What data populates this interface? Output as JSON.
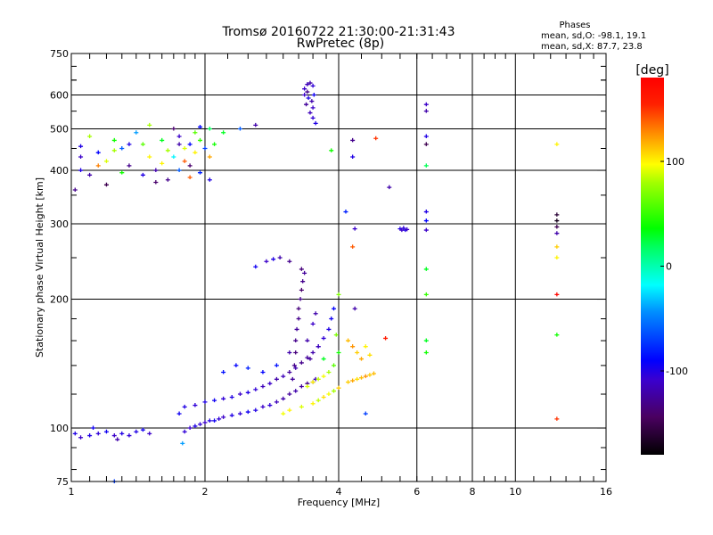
{
  "chart_data": {
    "type": "scatter",
    "title": "Tromsø 20160722 21:30:00-21:31:43",
    "subtitle": "RwPretec (8p)",
    "xlabel": "Frequency [MHz]",
    "ylabel": "Stationary phase Virtual Height [km]",
    "xscale": "log",
    "yscale": "log",
    "xlim": [
      1,
      16
    ],
    "ylim": [
      75,
      750
    ],
    "xticks": [
      1,
      2,
      4,
      6,
      8,
      10,
      16
    ],
    "xtick_labels": [
      "1",
      "2",
      "4",
      "6",
      "8",
      "10",
      "16"
    ],
    "yticks": [
      75,
      100,
      200,
      300,
      400,
      500,
      600,
      750
    ],
    "ytick_labels": [
      "75",
      "100",
      "200",
      "300",
      "400",
      "500",
      "600",
      "750"
    ],
    "x_gridlines": [
      2,
      4,
      6,
      8,
      10
    ],
    "y_gridlines": [
      100,
      200,
      300,
      400,
      500,
      600
    ],
    "grid": true,
    "info": {
      "heading": "Phases",
      "line_o": "mean, sd,O: -98.1, 19.1",
      "line_x": "mean, sd,X:  87.7, 23.8"
    },
    "colorbar": {
      "label": "[deg]",
      "range": [
        -180,
        180
      ],
      "ticks": [
        100,
        0,
        -100
      ],
      "tick_labels": [
        "100",
        "0",
        "-100"
      ],
      "placement": "right"
    },
    "point_format": [
      "frequency_MHz",
      "height_km",
      "phase_deg"
    ],
    "points": [
      [
        1.8,
        98,
        -105
      ],
      [
        1.85,
        100,
        -110
      ],
      [
        1.9,
        101,
        -100
      ],
      [
        1.95,
        102,
        -105
      ],
      [
        2.0,
        103,
        -110
      ],
      [
        2.05,
        104,
        -100
      ],
      [
        2.1,
        104,
        -95
      ],
      [
        2.15,
        105,
        -105
      ],
      [
        2.2,
        106,
        -110
      ],
      [
        2.3,
        107,
        -100
      ],
      [
        2.4,
        108,
        -105
      ],
      [
        2.5,
        109,
        -95
      ],
      [
        2.6,
        110,
        -100
      ],
      [
        2.7,
        112,
        -110
      ],
      [
        2.8,
        113,
        -105
      ],
      [
        2.9,
        115,
        -115
      ],
      [
        3.0,
        117,
        -120
      ],
      [
        3.1,
        120,
        -125
      ],
      [
        3.2,
        122,
        -120
      ],
      [
        3.3,
        125,
        -125
      ],
      [
        3.4,
        127,
        -130
      ],
      [
        3.5,
        128,
        -120
      ],
      [
        3.55,
        130,
        -115
      ],
      [
        3.15,
        130,
        -125
      ],
      [
        3.18,
        140,
        -130
      ],
      [
        3.2,
        150,
        -135
      ],
      [
        3.2,
        160,
        -130
      ],
      [
        3.22,
        170,
        -125
      ],
      [
        3.25,
        180,
        -130
      ],
      [
        3.25,
        190,
        -135
      ],
      [
        3.28,
        200,
        -130
      ],
      [
        3.3,
        210,
        -140
      ],
      [
        3.32,
        220,
        -130
      ],
      [
        3.35,
        230,
        -125
      ],
      [
        3.3,
        235,
        -135
      ],
      [
        3.1,
        150,
        -120
      ],
      [
        3.4,
        160,
        -120
      ],
      [
        3.45,
        145,
        -125
      ],
      [
        3.5,
        175,
        -110
      ],
      [
        3.6,
        155,
        -100
      ],
      [
        3.55,
        185,
        -120
      ],
      [
        1.75,
        108,
        -95
      ],
      [
        1.8,
        112,
        -100
      ],
      [
        1.9,
        113,
        -105
      ],
      [
        2.0,
        115,
        -100
      ],
      [
        2.1,
        116,
        -95
      ],
      [
        2.2,
        117,
        -105
      ],
      [
        2.3,
        118,
        -100
      ],
      [
        2.4,
        120,
        -110
      ],
      [
        2.5,
        121,
        -100
      ],
      [
        2.6,
        123,
        -105
      ],
      [
        2.7,
        125,
        -115
      ],
      [
        2.8,
        127,
        -110
      ],
      [
        2.9,
        130,
        -120
      ],
      [
        3.0,
        132,
        -115
      ],
      [
        3.1,
        135,
        -125
      ],
      [
        3.2,
        138,
        -120
      ],
      [
        3.3,
        142,
        -130
      ],
      [
        3.4,
        146,
        -125
      ],
      [
        3.5,
        150,
        -120
      ],
      [
        3.6,
        155,
        -115
      ],
      [
        3.7,
        162,
        -105
      ],
      [
        3.8,
        170,
        -100
      ],
      [
        3.85,
        180,
        -95
      ],
      [
        3.9,
        190,
        -90
      ],
      [
        2.2,
        135,
        -85
      ],
      [
        2.35,
        140,
        -90
      ],
      [
        2.5,
        138,
        -80
      ],
      [
        2.7,
        135,
        -90
      ],
      [
        2.9,
        140,
        -85
      ],
      [
        2.6,
        238,
        -95
      ],
      [
        2.75,
        245,
        -110
      ],
      [
        2.85,
        248,
        -100
      ],
      [
        2.95,
        250,
        -120
      ],
      [
        3.1,
        245,
        -130
      ],
      [
        3.0,
        108,
        95
      ],
      [
        3.1,
        110,
        100
      ],
      [
        3.3,
        112,
        90
      ],
      [
        3.5,
        114,
        100
      ],
      [
        3.6,
        116,
        85
      ],
      [
        3.7,
        118,
        105
      ],
      [
        3.8,
        120,
        95
      ],
      [
        3.9,
        122,
        80
      ],
      [
        4.0,
        124,
        110
      ],
      [
        3.4,
        125,
        90
      ],
      [
        3.5,
        128,
        100
      ],
      [
        3.6,
        130,
        85
      ],
      [
        3.7,
        132,
        95
      ],
      [
        3.8,
        135,
        80
      ],
      [
        3.9,
        140,
        60
      ],
      [
        4.0,
        150,
        40
      ],
      [
        3.95,
        165,
        70
      ],
      [
        3.7,
        145,
        30
      ],
      [
        4.0,
        205,
        70
      ],
      [
        4.2,
        128,
        110
      ],
      [
        4.3,
        129,
        120
      ],
      [
        4.4,
        130,
        105
      ],
      [
        4.5,
        131,
        115
      ],
      [
        4.6,
        132,
        125
      ],
      [
        4.7,
        133,
        110
      ],
      [
        4.8,
        134,
        115
      ],
      [
        4.4,
        150,
        110
      ],
      [
        4.5,
        145,
        120
      ],
      [
        4.6,
        155,
        100
      ],
      [
        4.7,
        148,
        105
      ],
      [
        4.3,
        155,
        125
      ],
      [
        4.2,
        160,
        115
      ],
      [
        5.1,
        162,
        160
      ],
      [
        4.6,
        108,
        -70
      ],
      [
        4.35,
        190,
        -120
      ],
      [
        3.35,
        620,
        -110
      ],
      [
        3.4,
        635,
        -115
      ],
      [
        3.45,
        640,
        -120
      ],
      [
        3.5,
        630,
        -105
      ],
      [
        3.35,
        600,
        -110
      ],
      [
        3.42,
        590,
        -100
      ],
      [
        3.48,
        580,
        -120
      ],
      [
        3.5,
        560,
        -110
      ],
      [
        3.38,
        570,
        -125
      ],
      [
        3.45,
        545,
        -115
      ],
      [
        3.5,
        530,
        -105
      ],
      [
        3.55,
        515,
        -100
      ],
      [
        3.4,
        610,
        -130
      ],
      [
        3.52,
        600,
        -95
      ],
      [
        1.05,
        455,
        -100
      ],
      [
        1.05,
        430,
        -110
      ],
      [
        1.1,
        480,
        80
      ],
      [
        1.15,
        440,
        -90
      ],
      [
        1.2,
        420,
        90
      ],
      [
        1.25,
        470,
        40
      ],
      [
        1.3,
        450,
        -60
      ],
      [
        1.35,
        410,
        -130
      ],
      [
        1.4,
        490,
        -40
      ],
      [
        1.45,
        460,
        60
      ],
      [
        1.5,
        430,
        100
      ],
      [
        1.55,
        400,
        -120
      ],
      [
        1.6,
        470,
        30
      ],
      [
        1.65,
        445,
        80
      ],
      [
        1.7,
        500,
        -140
      ],
      [
        1.75,
        480,
        -110
      ],
      [
        1.8,
        420,
        140
      ],
      [
        1.85,
        460,
        -90
      ],
      [
        1.9,
        440,
        100
      ],
      [
        1.95,
        470,
        50
      ],
      [
        2.0,
        450,
        -70
      ],
      [
        2.05,
        430,
        120
      ],
      [
        1.75,
        400,
        -60
      ],
      [
        1.65,
        380,
        -130
      ],
      [
        1.55,
        375,
        -140
      ],
      [
        1.45,
        390,
        -100
      ],
      [
        1.3,
        395,
        40
      ],
      [
        1.2,
        370,
        -150
      ],
      [
        1.1,
        390,
        -120
      ],
      [
        1.85,
        385,
        140
      ],
      [
        1.95,
        395,
        -80
      ],
      [
        2.05,
        380,
        -100
      ],
      [
        2.2,
        490,
        30
      ],
      [
        2.4,
        500,
        -60
      ],
      [
        2.6,
        510,
        -120
      ],
      [
        1.5,
        510,
        80
      ],
      [
        1.95,
        505,
        -90
      ],
      [
        2.05,
        500,
        20
      ],
      [
        1.8,
        450,
        90
      ],
      [
        1.9,
        490,
        60
      ],
      [
        1.7,
        430,
        -20
      ],
      [
        1.6,
        415,
        100
      ],
      [
        1.35,
        460,
        -100
      ],
      [
        1.25,
        445,
        80
      ],
      [
        1.15,
        410,
        130
      ],
      [
        2.1,
        460,
        40
      ],
      [
        1.85,
        410,
        -140
      ],
      [
        1.75,
        460,
        -120
      ],
      [
        1.05,
        400,
        -100
      ],
      [
        1.02,
        360,
        -130
      ],
      [
        1.02,
        97,
        -100
      ],
      [
        1.05,
        95,
        -110
      ],
      [
        1.1,
        96,
        -100
      ],
      [
        1.15,
        97,
        -105
      ],
      [
        1.2,
        98,
        -95
      ],
      [
        1.25,
        96,
        -110
      ],
      [
        1.3,
        97,
        -100
      ],
      [
        1.35,
        96,
        -105
      ],
      [
        1.4,
        98,
        -100
      ],
      [
        1.45,
        99,
        -95
      ],
      [
        1.5,
        97,
        -110
      ],
      [
        1.12,
        100,
        -95
      ],
      [
        1.27,
        94,
        -120
      ],
      [
        1.78,
        92,
        -40
      ],
      [
        1.25,
        75,
        -70
      ],
      [
        6.3,
        570,
        -110
      ],
      [
        6.3,
        550,
        -120
      ],
      [
        6.3,
        480,
        -100
      ],
      [
        6.3,
        460,
        -150
      ],
      [
        6.3,
        410,
        20
      ],
      [
        6.3,
        320,
        -100
      ],
      [
        6.3,
        305,
        -90
      ],
      [
        6.3,
        290,
        -110
      ],
      [
        6.3,
        235,
        30
      ],
      [
        6.3,
        205,
        50
      ],
      [
        6.3,
        160,
        30
      ],
      [
        6.3,
        150,
        40
      ],
      [
        5.5,
        292,
        -100
      ],
      [
        5.55,
        290,
        -110
      ],
      [
        5.6,
        293,
        -105
      ],
      [
        5.65,
        290,
        -100
      ],
      [
        5.7,
        291,
        -110
      ],
      [
        5.2,
        365,
        -120
      ],
      [
        4.3,
        470,
        -130
      ],
      [
        4.3,
        430,
        -100
      ],
      [
        4.35,
        292,
        -110
      ],
      [
        4.3,
        265,
        140
      ],
      [
        4.85,
        475,
        150
      ],
      [
        4.15,
        320,
        -80
      ],
      [
        3.85,
        445,
        40
      ],
      [
        12.4,
        460,
        100
      ],
      [
        12.4,
        315,
        -160
      ],
      [
        12.4,
        305,
        -170
      ],
      [
        12.4,
        295,
        -150
      ],
      [
        12.4,
        285,
        -120
      ],
      [
        12.4,
        265,
        110
      ],
      [
        12.4,
        250,
        100
      ],
      [
        12.4,
        205,
        175
      ],
      [
        12.4,
        165,
        40
      ],
      [
        12.4,
        105,
        150
      ]
    ]
  }
}
